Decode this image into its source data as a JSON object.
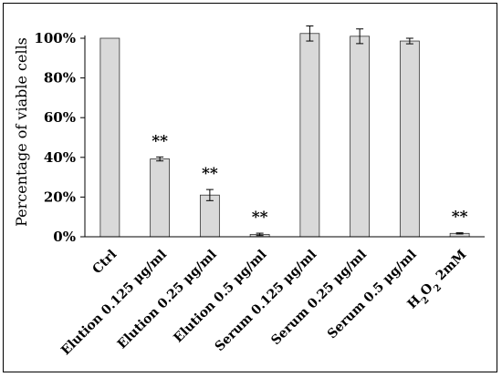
{
  "chart_data": {
    "type": "bar",
    "ylabel": "Percentage of viable cells",
    "ylim": [
      0,
      100
    ],
    "yticks": [
      0,
      20,
      40,
      60,
      80,
      100
    ],
    "ytick_labels": [
      "0%",
      "20%",
      "40%",
      "60%",
      "80%",
      "100%"
    ],
    "grid": false,
    "bar_color": "#d9d9d9",
    "categories": [
      "Ctrl",
      "Elution 0.125 μg/ml",
      "Elution 0.25 μg/ml",
      "Elution 0.5 μg/ml",
      "Serum 0.125 μg/ml",
      "Serum 0.25 μg/ml",
      "Serum 0.5 μg/ml",
      "H2O2 2mM"
    ],
    "values": [
      100,
      39.2,
      21,
      1.2,
      102.4,
      101,
      98.6,
      1.7
    ],
    "errors": [
      0,
      1,
      2.8,
      0.6,
      3.8,
      3.7,
      1.4,
      0.3
    ],
    "annotations": [
      "",
      "**",
      "**",
      "**",
      "",
      "",
      "",
      "**"
    ]
  }
}
